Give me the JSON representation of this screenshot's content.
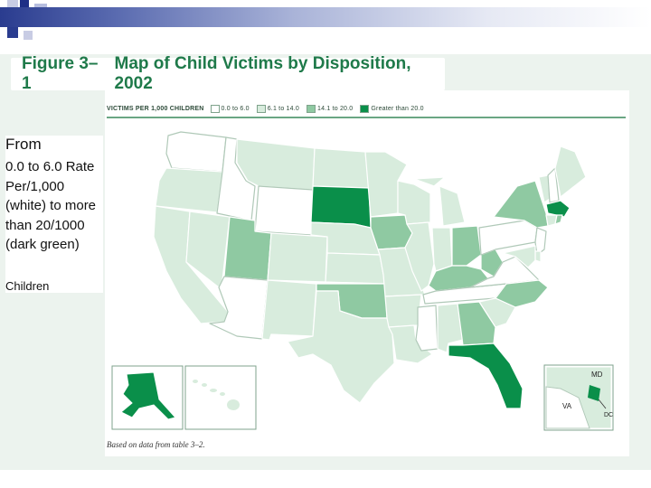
{
  "figure": {
    "number": "Figure 3–1",
    "title": "Map of Child Victims by Disposition, 2002"
  },
  "legend": {
    "heading": "VICTIMS PER 1,000 CHILDREN",
    "items": [
      {
        "label": "0.0 to 6.0",
        "color": "#ffffff"
      },
      {
        "label": "6.1 to 14.0",
        "color": "#d8ecdd"
      },
      {
        "label": "14.1 to 20.0",
        "color": "#8fc9a2"
      },
      {
        "label": "Greater than 20.0",
        "color": "#0a8f4a"
      }
    ]
  },
  "side_text": {
    "from": "From",
    "description": "0.0 to 6.0 Rate Per/1,000 (white) to more than 20/1000 (dark green)",
    "children": "Children"
  },
  "inset_labels": {
    "md": "MD",
    "va": "VA",
    "dc": "DC"
  },
  "source_note": "Based on data from table 3–2.",
  "colors": {
    "title_green": "#1f7a4a",
    "frame_bg": "#ecf3ee",
    "state_border": "#ffffff",
    "outline": "#7fa38c"
  },
  "state_categories": {
    "WA": "0.0 to 6.0",
    "OR": "6.1 to 14.0",
    "CA": "6.1 to 14.0",
    "NV": "6.1 to 14.0",
    "ID": "0.0 to 6.0",
    "MT": "6.1 to 14.0",
    "WY": "0.0 to 6.0",
    "UT": "14.1 to 20.0",
    "AZ": "0.0 to 6.0",
    "CO": "6.1 to 14.0",
    "NM": "6.1 to 14.0",
    "ND": "6.1 to 14.0",
    "SD": "Greater than 20.0",
    "NE": "6.1 to 14.0",
    "KS": "6.1 to 14.0",
    "OK": "14.1 to 20.0",
    "TX": "6.1 to 14.0",
    "MN": "6.1 to 14.0",
    "IA": "14.1 to 20.0",
    "MO": "6.1 to 14.0",
    "AR": "6.1 to 14.0",
    "LA": "6.1 to 14.0",
    "WI": "6.1 to 14.0",
    "IL": "6.1 to 14.0",
    "MS": "0.0 to 6.0",
    "MI": "6.1 to 14.0",
    "IN": "6.1 to 14.0",
    "KY": "14.1 to 20.0",
    "TN": "0.0 to 6.0",
    "AL": "6.1 to 14.0",
    "OH": "14.1 to 20.0",
    "WV": "14.1 to 20.0",
    "VA": "0.0 to 6.0",
    "NC": "14.1 to 20.0",
    "SC": "6.1 to 14.0",
    "GA": "14.1 to 20.0",
    "FL": "Greater than 20.0",
    "PA": "0.0 to 6.0",
    "NY": "14.1 to 20.0",
    "VT": "6.1 to 14.0",
    "NH": "0.0 to 6.0",
    "ME": "6.1 to 14.0",
    "MA": "Greater than 20.0",
    "RI": "14.1 to 20.0",
    "CT": "6.1 to 14.0",
    "NJ": "0.0 to 6.0",
    "DE": "6.1 to 14.0",
    "MD": "6.1 to 14.0",
    "DC": "Greater than 20.0",
    "AK": "Greater than 20.0",
    "HI": "6.1 to 14.0"
  }
}
